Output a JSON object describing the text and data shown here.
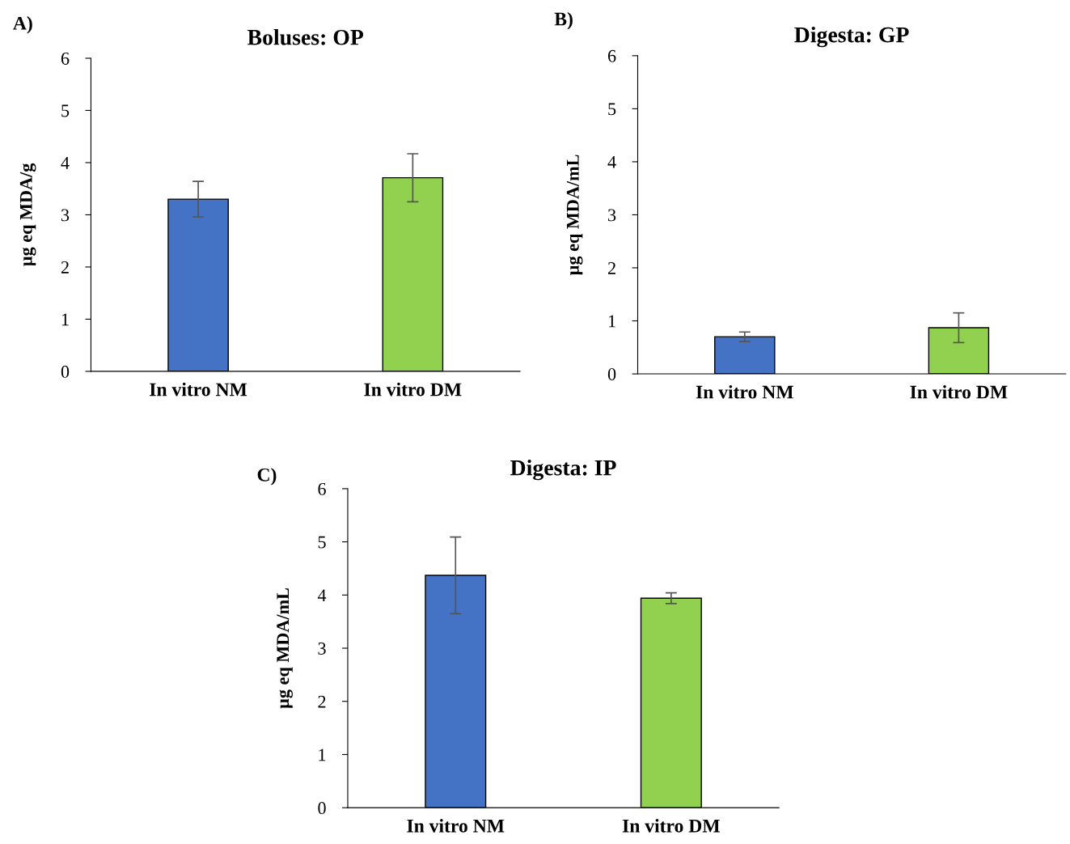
{
  "chart_data": [
    {
      "type": "bar",
      "title": "Boluses: OP",
      "ylabel": "µg eq MDA/g",
      "annotations": [
        "A)"
      ],
      "categories": [
        "In vitro NM",
        "In vitro DM"
      ],
      "values": [
        3.3,
        3.71
      ],
      "errors": [
        0.34,
        0.46
      ],
      "colors": [
        "#4472c4",
        "#92d050"
      ],
      "ylim": [
        0,
        6
      ],
      "yticks": [
        0,
        1,
        2,
        3,
        4,
        5,
        6
      ],
      "grid": false,
      "legend": false
    },
    {
      "type": "bar",
      "title": "Digesta: GP",
      "ylabel": "µg eq MDA/mL",
      "annotations": [
        "B)"
      ],
      "categories": [
        "In vitro NM",
        "In vitro DM"
      ],
      "values": [
        0.7,
        0.87
      ],
      "errors": [
        0.09,
        0.28
      ],
      "colors": [
        "#4472c4",
        "#92d050"
      ],
      "ylim": [
        0,
        6
      ],
      "yticks": [
        0,
        1,
        2,
        3,
        4,
        5,
        6
      ],
      "grid": false,
      "legend": false
    },
    {
      "type": "bar",
      "title": "Digesta: IP",
      "ylabel": "µg eq MDA/mL",
      "annotations": [
        "C)"
      ],
      "categories": [
        "In vitro NM",
        "In vitro DM"
      ],
      "values": [
        4.37,
        3.94
      ],
      "errors": [
        0.72,
        0.1
      ],
      "colors": [
        "#4472c4",
        "#92d050"
      ],
      "ylim": [
        0,
        6
      ],
      "yticks": [
        0,
        1,
        2,
        3,
        4,
        5,
        6
      ],
      "grid": false,
      "legend": false
    }
  ]
}
